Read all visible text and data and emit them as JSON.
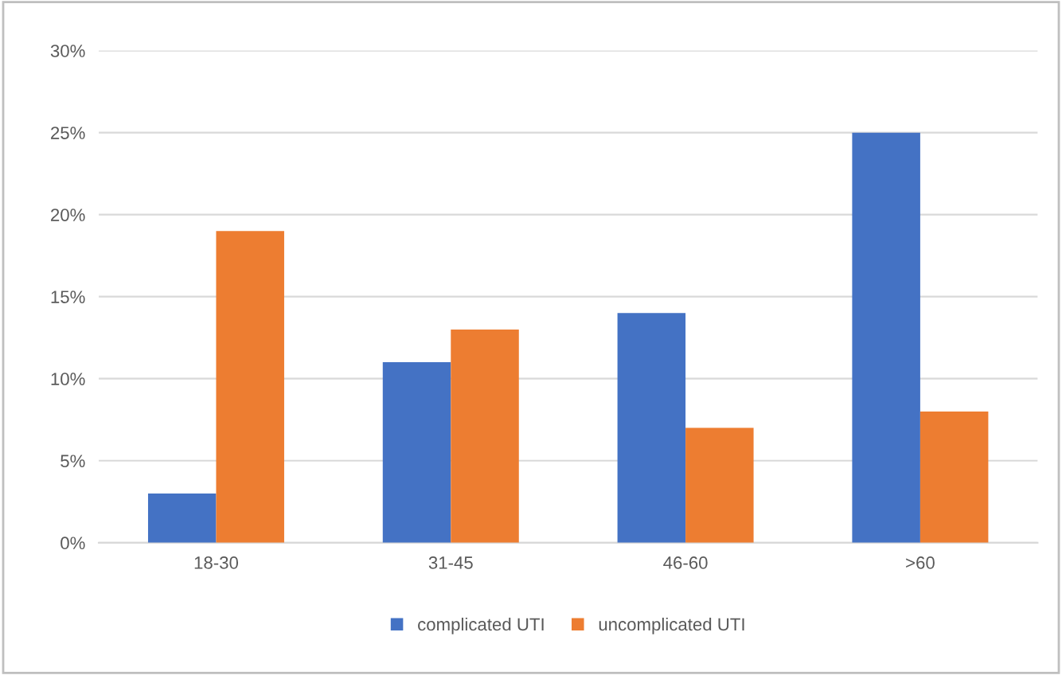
{
  "chart_data": {
    "type": "bar",
    "categories": [
      "18-30",
      "31-45",
      "46-60",
      ">60"
    ],
    "series": [
      {
        "name": "complicated UTI",
        "color": "#4472c4",
        "values": [
          3,
          11,
          14,
          25
        ]
      },
      {
        "name": "uncomplicated UTI",
        "color": "#ed7d31",
        "values": [
          19,
          13,
          7,
          8
        ]
      }
    ],
    "ylim": [
      0,
      30
    ],
    "yticks": [
      {
        "value": 0,
        "label": "0%"
      },
      {
        "value": 5,
        "label": "5%"
      },
      {
        "value": 10,
        "label": "10%"
      },
      {
        "value": 15,
        "label": "15%"
      },
      {
        "value": 20,
        "label": "20%"
      },
      {
        "value": 25,
        "label": "25%"
      },
      {
        "value": 30,
        "label": "30%"
      }
    ],
    "grid": "y",
    "legend": "bottom"
  }
}
